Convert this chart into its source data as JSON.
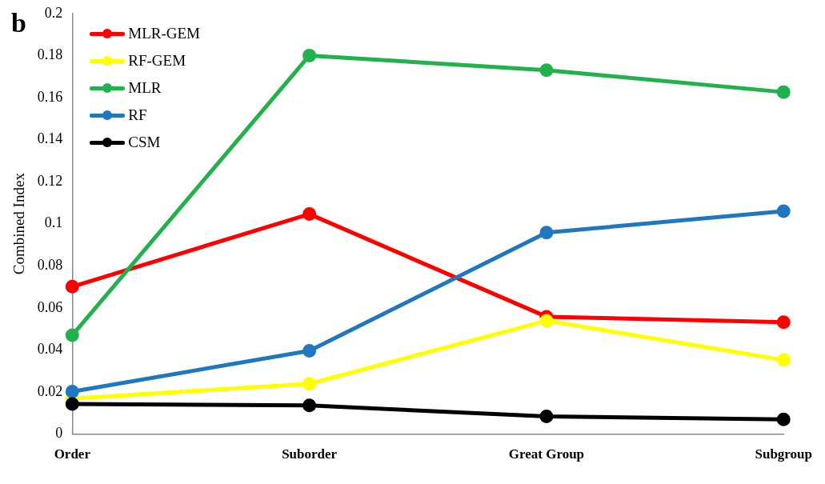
{
  "chart_data": {
    "type": "line",
    "ylabel": "Combined Index",
    "annotations": [
      "b"
    ],
    "categories": [
      "Order",
      "Suborder",
      "Great Group",
      "Subgroup"
    ],
    "series": [
      {
        "name": "MLR-GEM",
        "color": "#ff0000",
        "values": [
          0.0701,
          0.1046,
          0.0558,
          0.0532
        ]
      },
      {
        "name": "RF-GEM",
        "color": "#ffff00",
        "values": [
          0.0169,
          0.0239,
          0.0539,
          0.0352
        ]
      },
      {
        "name": "MLR",
        "color": "#22b14c",
        "values": [
          0.047,
          0.18,
          0.173,
          0.1626
        ]
      },
      {
        "name": "RF",
        "color": "#1f77c0",
        "values": [
          0.0202,
          0.0396,
          0.0958,
          0.106
        ]
      },
      {
        "name": "CSM",
        "color": "#000000",
        "values": [
          0.0143,
          0.0136,
          0.0084,
          0.007
        ]
      }
    ],
    "ylim": [
      0,
      0.2
    ],
    "yticks": [
      0,
      0.02,
      0.04,
      0.06,
      0.08,
      0.1,
      0.12,
      0.14,
      0.16,
      0.18,
      0.2
    ],
    "grid": false,
    "legend": "top left",
    "marker": "circle",
    "line_style": "solid"
  }
}
